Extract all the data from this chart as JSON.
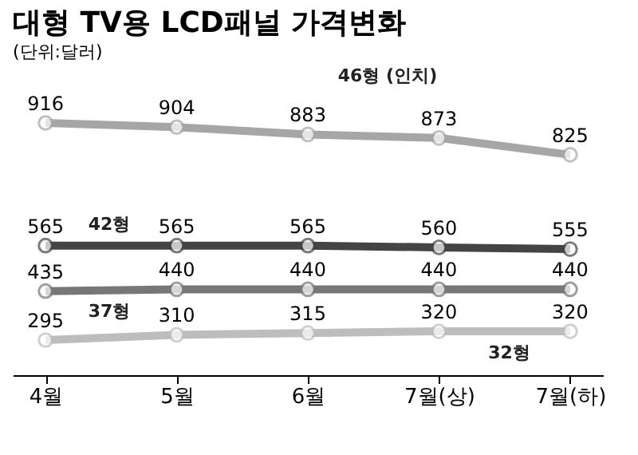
{
  "chart_data": {
    "type": "line",
    "title": "대형 TV용 LCD패널 가격변화",
    "subtitle": "(단위:달러)",
    "categories": [
      "4월",
      "5월",
      "6월",
      "7월(상)",
      "7월(하)"
    ],
    "series": [
      {
        "name": "46형 (인치)",
        "color": "#a6a6a6",
        "values": [
          916,
          904,
          883,
          873,
          825
        ]
      },
      {
        "name": "42형",
        "color": "#444444",
        "values": [
          565,
          565,
          565,
          560,
          555
        ]
      },
      {
        "name": "37형",
        "color": "#777777",
        "values": [
          435,
          440,
          440,
          440,
          440
        ]
      },
      {
        "name": "32형",
        "color": "#bdbdbd",
        "values": [
          295,
          310,
          315,
          320,
          320
        ]
      }
    ],
    "tick_labels": "x",
    "data_labels": true,
    "marker": "circle",
    "line_style": "solid",
    "grid": false
  }
}
